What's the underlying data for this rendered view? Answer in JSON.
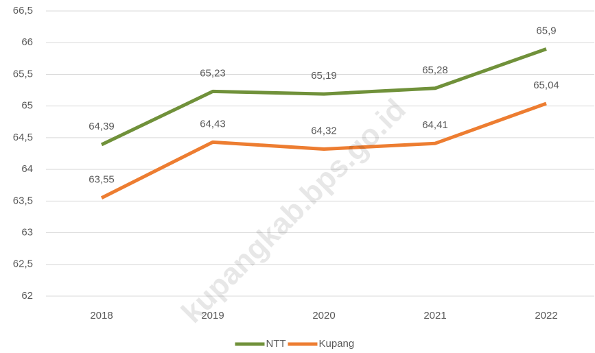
{
  "chart_data": {
    "type": "line",
    "categories": [
      "2018",
      "2019",
      "2020",
      "2021",
      "2022"
    ],
    "series": [
      {
        "name": "NTT",
        "color": "#70913a",
        "values": [
          64.39,
          65.23,
          65.19,
          65.28,
          65.9
        ],
        "value_labels": [
          "64,39",
          "65,23",
          "65,19",
          "65,28",
          "65,9"
        ]
      },
      {
        "name": "Kupang",
        "color": "#ed7d31",
        "values": [
          63.55,
          64.43,
          64.32,
          64.41,
          65.04
        ],
        "value_labels": [
          "63,55",
          "64,43",
          "64,32",
          "64,41",
          "65,04"
        ]
      }
    ],
    "ylim": [
      62,
      66.5
    ],
    "yticks": [
      62,
      {
        "value": 62.5,
        "label": "62,5"
      },
      63,
      {
        "value": 63.5,
        "label": "63,5"
      },
      64,
      {
        "value": 64.5,
        "label": "64,5"
      },
      65,
      {
        "value": 65.5,
        "label": "65,5"
      },
      66,
      {
        "value": 66.5,
        "label": "66,5"
      }
    ],
    "grid": true,
    "legend": "bottom",
    "watermark": "kupangkab.bps.go.id"
  }
}
